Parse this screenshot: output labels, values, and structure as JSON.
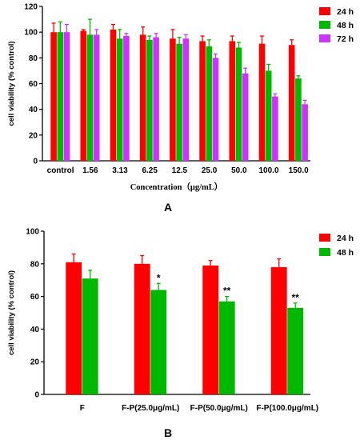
{
  "chart_data": [
    {
      "type": "bar",
      "panel_label": "A",
      "categories": [
        "control",
        "1.56",
        "3.13",
        "6.25",
        "12.5",
        "25.0",
        "50.0",
        "100.0",
        "150.0"
      ],
      "series": [
        {
          "name": "24 h",
          "color": "#ff0000",
          "values": [
            100,
            101,
            102,
            98,
            95,
            93,
            93,
            91,
            90
          ],
          "errors": [
            7,
            1,
            4,
            6,
            7,
            4,
            4,
            6,
            4
          ]
        },
        {
          "name": "48 h",
          "color": "#00b800",
          "values": [
            100,
            98,
            95,
            94,
            91,
            89,
            88,
            70,
            64
          ],
          "errors": [
            8,
            12,
            7,
            3,
            5,
            5,
            4,
            5,
            2
          ]
        },
        {
          "name": "72 h",
          "color": "#cc33ff",
          "values": [
            100,
            98,
            97,
            96,
            95,
            80,
            68,
            50,
            44
          ],
          "errors": [
            6,
            4,
            2,
            3,
            3,
            3,
            4,
            2,
            3
          ]
        }
      ],
      "xlabel": "Concentration（μg/mL）",
      "ylabel": "cell viability (% control)",
      "ylim": [
        0,
        120
      ],
      "yticks": [
        "0",
        "20",
        "40",
        "60",
        "80",
        "100",
        "120"
      ],
      "legend": "top-right"
    },
    {
      "type": "bar",
      "panel_label": "B",
      "categories": [
        "F",
        "F-P(25.0μg/mL)",
        "F-P(50.0μg/mL)",
        "F-P(100.0μg/mL)"
      ],
      "series": [
        {
          "name": "24 h",
          "color": "#ff0000",
          "values": [
            81,
            80,
            79,
            78
          ],
          "errors": [
            5,
            5,
            3,
            5
          ]
        },
        {
          "name": "48 h",
          "color": "#00b800",
          "values": [
            71,
            64,
            57,
            53
          ],
          "errors": [
            5,
            4,
            3,
            3
          ]
        }
      ],
      "annotations": [
        "",
        "*",
        "**",
        "**"
      ],
      "xlabel": "",
      "ylabel": "cell viability (% control)",
      "ylim": [
        0,
        100
      ],
      "yticks": [
        "0",
        "20",
        "40",
        "60",
        "80",
        "100"
      ],
      "legend": "top-right"
    }
  ]
}
